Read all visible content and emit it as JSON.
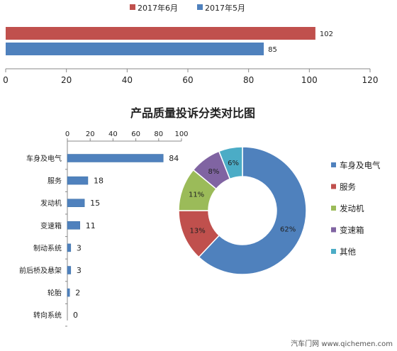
{
  "chart_data": [
    {
      "type": "bar",
      "orientation": "horizontal",
      "categories": [
        ""
      ],
      "series": [
        {
          "name": "2017年6月",
          "values": [
            102
          ],
          "color": "#c0504d"
        },
        {
          "name": "2017年5月",
          "values": [
            85
          ],
          "color": "#4f81bd"
        }
      ],
      "xlim": [
        0,
        120
      ],
      "xticks": [
        "0",
        "20",
        "40",
        "60",
        "80",
        "100",
        "120"
      ],
      "legend": "top"
    },
    {
      "type": "bar",
      "orientation": "horizontal",
      "title": "产品质量投诉分类对比图",
      "categories": [
        "车身及电气",
        "服务",
        "发动机",
        "变速箱",
        "制动系统",
        "前后桥及悬架",
        "轮胎",
        "转向系统"
      ],
      "values": [
        84,
        18,
        15,
        11,
        3,
        3,
        2,
        0
      ],
      "xlim": [
        0,
        100
      ],
      "xticks": [
        "0",
        "20",
        "40",
        "60",
        "80",
        "100"
      ],
      "color": "#4f81bd"
    },
    {
      "type": "pie",
      "donut": true,
      "labels": [
        "车身及电气",
        "服务",
        "发动机",
        "变速箱",
        "其他"
      ],
      "values": [
        62,
        13,
        11,
        8,
        6
      ],
      "value_labels": [
        "62%",
        "13%",
        "11%",
        "8%",
        "6%"
      ],
      "colors": [
        "#4f81bd",
        "#c0504d",
        "#9bbb59",
        "#8064a2",
        "#4bacc6"
      ],
      "legend": "right"
    }
  ],
  "watermark": "汽车门网 www.qichemen.com"
}
